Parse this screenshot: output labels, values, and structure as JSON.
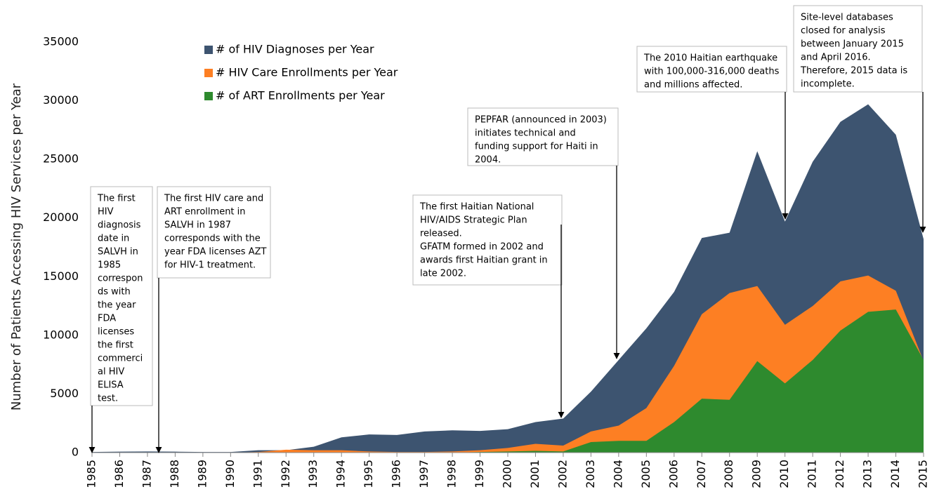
{
  "chart_data": {
    "type": "area",
    "y_axis_label": "Number of Patients Accessing HIV Services per Year",
    "x": [
      1985,
      1986,
      1987,
      1988,
      1989,
      1990,
      1991,
      1992,
      1993,
      1994,
      1995,
      1996,
      1997,
      1998,
      1999,
      2000,
      2001,
      2002,
      2003,
      2004,
      2005,
      2006,
      2007,
      2008,
      2009,
      2010,
      2011,
      2012,
      2013,
      2014,
      2015
    ],
    "xlim": [
      1985,
      2015
    ],
    "ylim": [
      0,
      35000
    ],
    "yticks": [
      0,
      5000,
      10000,
      15000,
      20000,
      25000,
      30000,
      35000
    ],
    "grid": false,
    "series": [
      {
        "name": "# of HIV Diagnoses per Year",
        "color": "#3d5470",
        "values": [
          50,
          80,
          100,
          80,
          50,
          50,
          200,
          200,
          500,
          1300,
          1550,
          1500,
          1800,
          1900,
          1850,
          2000,
          2600,
          2900,
          5200,
          7900,
          10600,
          13700,
          18300,
          18750,
          25700,
          19700,
          24800,
          28200,
          29700,
          27100,
          18200
        ]
      },
      {
        "name": "# HIV Care Enrollments per Year",
        "color": "#fd7f23",
        "values": [
          0,
          0,
          0,
          0,
          0,
          0,
          50,
          250,
          200,
          200,
          100,
          50,
          50,
          100,
          200,
          400,
          750,
          600,
          1800,
          2300,
          3800,
          7400,
          11800,
          13600,
          14200,
          10900,
          12500,
          14600,
          15100,
          13800,
          7800
        ]
      },
      {
        "name": "# of ART Enrollments per Year",
        "color": "#2e8a2e",
        "values": [
          0,
          0,
          0,
          0,
          0,
          0,
          0,
          0,
          0,
          0,
          0,
          0,
          0,
          0,
          50,
          100,
          150,
          100,
          900,
          1000,
          1000,
          2600,
          4600,
          4500,
          7800,
          5900,
          7900,
          10400,
          12000,
          12200,
          7900
        ]
      }
    ],
    "annotations": [
      {
        "lines": [
          "The first",
          "HIV",
          "diagnosis",
          "date in",
          "SALVH in",
          "1985",
          "correspon",
          "ds with",
          "the year",
          "FDA",
          "licenses",
          "the first",
          "commerci",
          "al HIV",
          "ELISA",
          "test."
        ]
      },
      {
        "lines": [
          "The first HIV care and",
          "ART enrollment in",
          "SALVH in 1987",
          "corresponds with the",
          "year FDA licenses AZT",
          "for HIV-1 treatment."
        ]
      },
      {
        "lines": [
          "The first Haitian National",
          "HIV/AIDS Strategic Plan",
          "released.",
          "GFATM formed in 2002 and",
          "awards first Haitian grant in",
          "late 2002."
        ]
      },
      {
        "lines": [
          "PEPFAR (announced in 2003)",
          "initiates technical and",
          "funding support for Haiti in",
          "2004."
        ]
      },
      {
        "lines": [
          "The 2010 Haitian earthquake",
          "with 100,000-316,000 deaths",
          "and millions affected."
        ]
      },
      {
        "lines": [
          "Site-level databases",
          "closed for analysis",
          "between January 2015",
          "and April 2016.",
          "Therefore, 2015 data is",
          "incomplete."
        ]
      }
    ]
  }
}
